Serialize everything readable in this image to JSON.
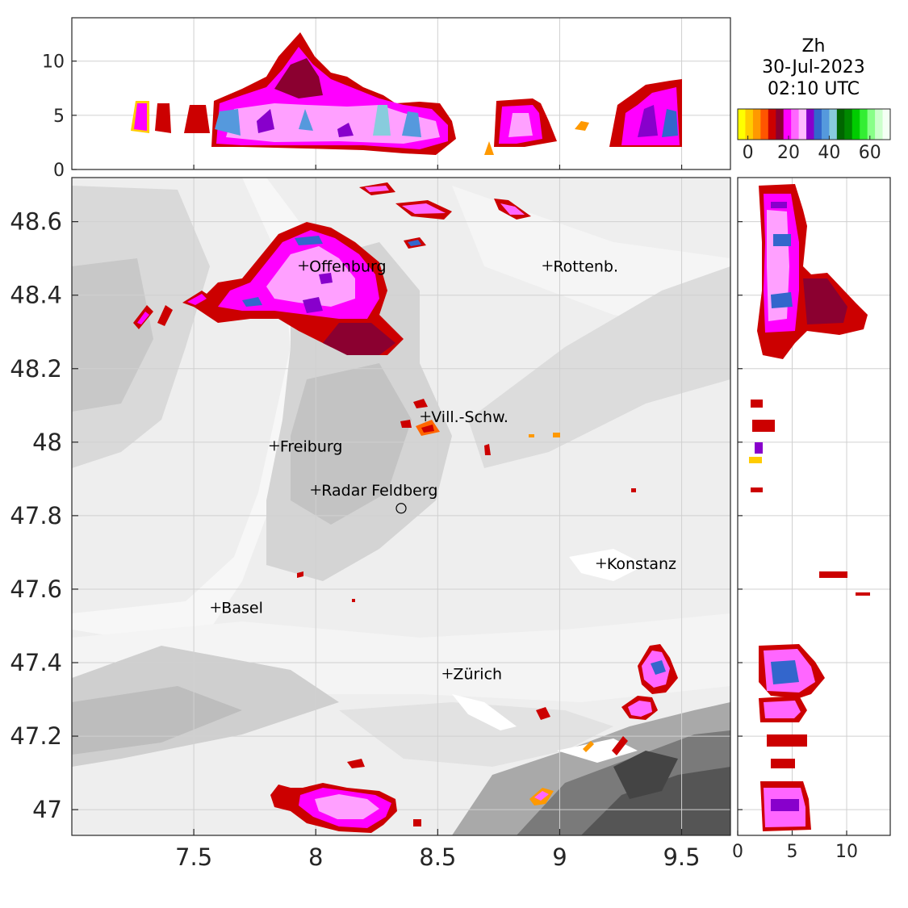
{
  "title": {
    "variable": "Zh",
    "date": "30-Jul-2023",
    "time": "02:10 UTC"
  },
  "colorbar": {
    "colors": [
      "#ffff00",
      "#ffcc00",
      "#ff9900",
      "#ff5500",
      "#cc0000",
      "#8b0030",
      "#ff00ff",
      "#ff66ff",
      "#ffbbff",
      "#8800cc",
      "#3366cc",
      "#5599dd",
      "#88ccdd",
      "#006600",
      "#008800",
      "#00cc00",
      "#33ee33",
      "#88ff88",
      "#ccffcc",
      "#f4fff4"
    ],
    "tick_labels": [
      "0",
      "20",
      "40",
      "60"
    ],
    "range": [
      -5,
      70
    ]
  },
  "chart_data": [
    {
      "type": "heatmap",
      "panel": "main map",
      "xlabel": "",
      "ylabel": "",
      "xlim": [
        7.0,
        9.7
      ],
      "ylim": [
        46.93,
        48.72
      ],
      "xticks": [
        "7.5",
        "8",
        "8.5",
        "9",
        "9.5"
      ],
      "yticks": [
        "47",
        "47.2",
        "47.4",
        "47.6",
        "47.8",
        "48",
        "48.2",
        "48.4",
        "48.6"
      ],
      "grid": true,
      "places": [
        {
          "name": "Offenburg",
          "lon": 7.95,
          "lat": 48.48
        },
        {
          "name": "Rottenb.",
          "lon": 8.95,
          "lat": 48.48
        },
        {
          "name": "Vill.-Schw.",
          "lon": 8.45,
          "lat": 48.07
        },
        {
          "name": "Freiburg",
          "lon": 7.83,
          "lat": 47.99
        },
        {
          "name": "Radar Feldberg",
          "lon": 8.0,
          "lat": 47.87
        },
        {
          "name": "Konstanz",
          "lon": 9.17,
          "lat": 47.67
        },
        {
          "name": "Basel",
          "lon": 7.59,
          "lat": 47.55
        },
        {
          "name": "Zürich",
          "lon": 8.54,
          "lat": 47.37
        }
      ],
      "radar_site": {
        "lon": 8.35,
        "lat": 47.82
      }
    },
    {
      "type": "heatmap",
      "panel": "top cross-section (longitude vs height)",
      "xlim": [
        7.0,
        9.7
      ],
      "ylim": [
        0,
        14
      ],
      "yticks": [
        "0",
        "5",
        "10"
      ],
      "grid": true
    },
    {
      "type": "heatmap",
      "panel": "right cross-section (height vs latitude)",
      "xlim": [
        0,
        14
      ],
      "ylim": [
        46.93,
        48.72
      ],
      "xticks": [
        "0",
        "5",
        "10"
      ],
      "grid": true
    }
  ]
}
